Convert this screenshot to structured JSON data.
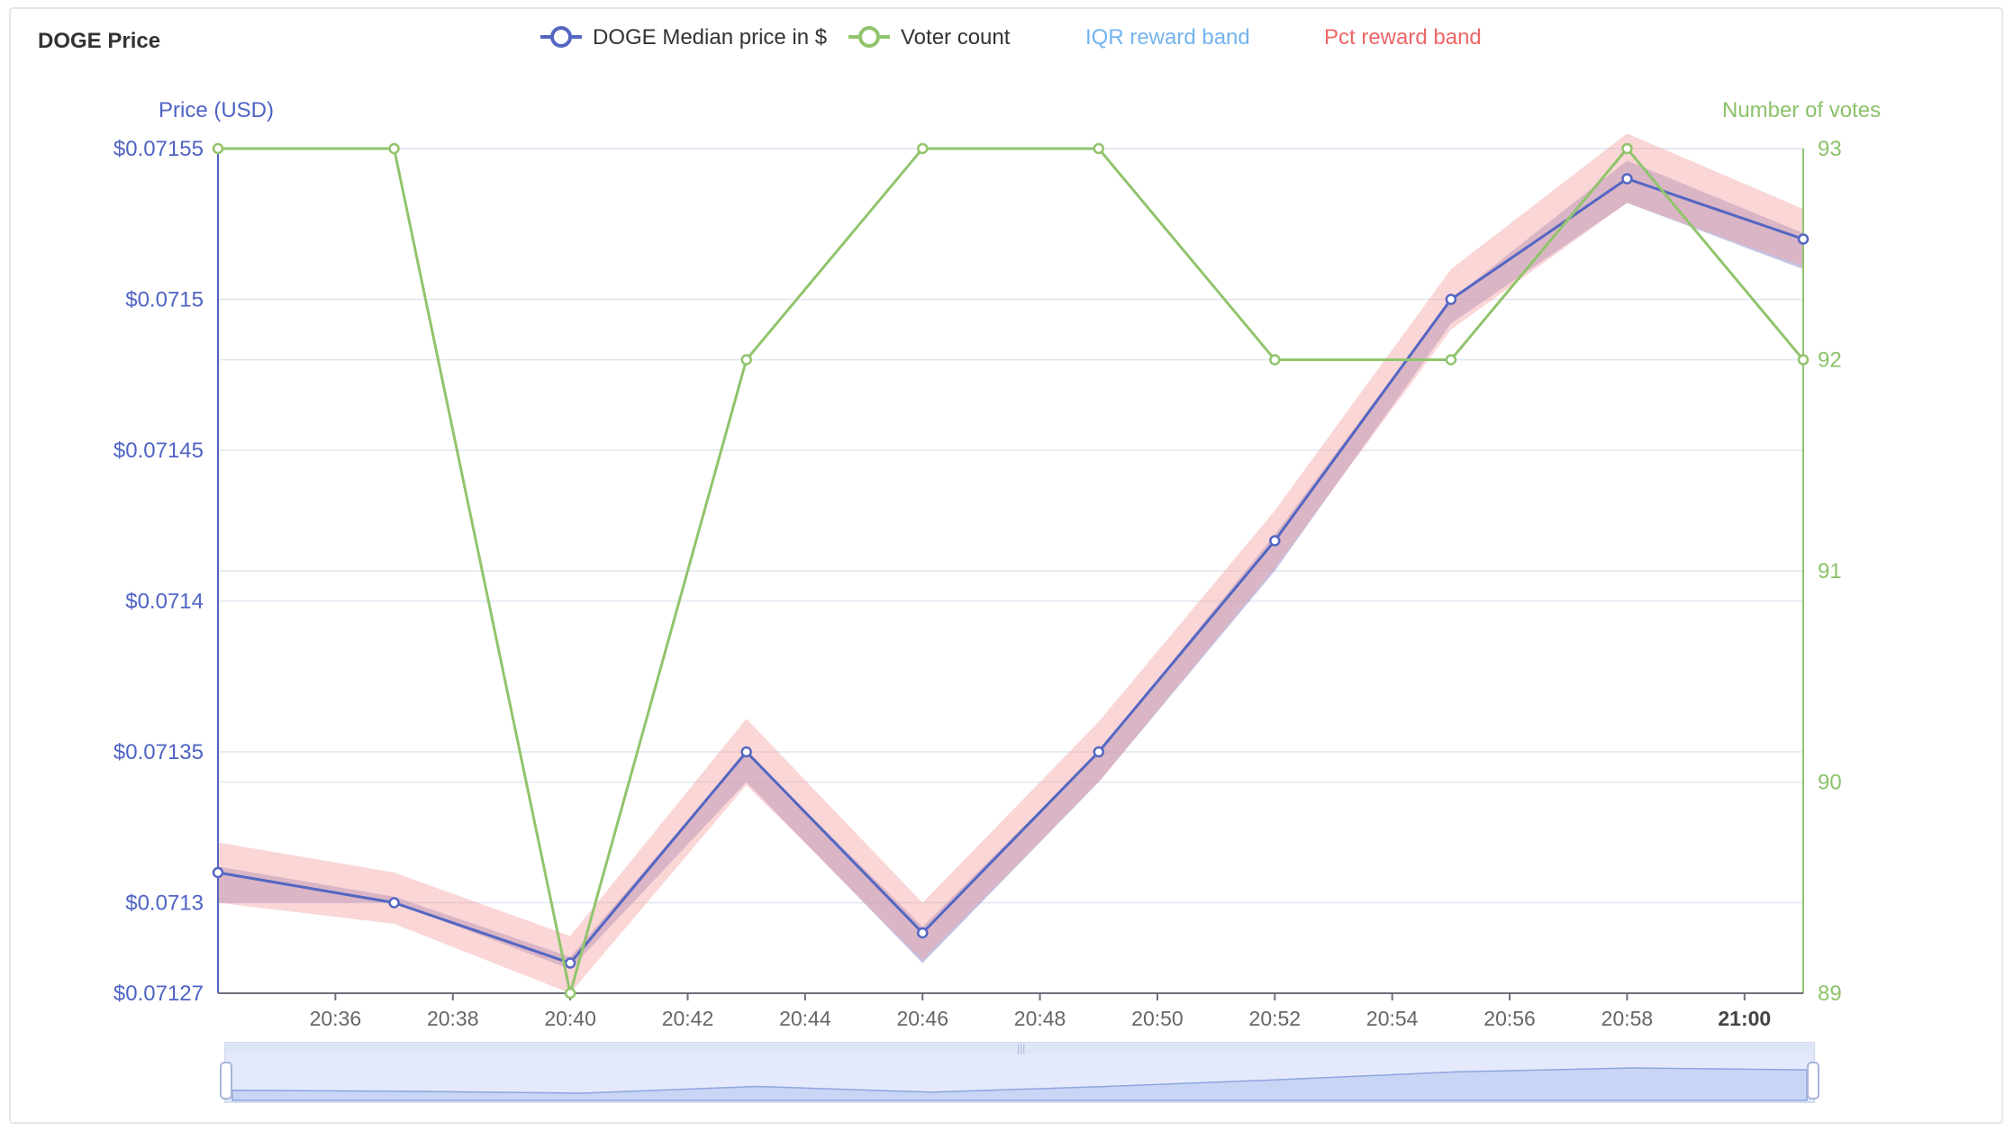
{
  "title": "DOGE Price",
  "legend": {
    "median": {
      "label": "DOGE Median price in $",
      "color": "#5466c2"
    },
    "voters": {
      "label": "Voter count",
      "color": "#91c46c"
    },
    "iqr": {
      "label": "IQR reward band",
      "color": "#73b4f0"
    },
    "pct": {
      "label": "Pct reward band",
      "color": "#ee6666"
    }
  },
  "chart_data": {
    "type": "line",
    "x": [
      "20:34",
      "20:37",
      "20:40",
      "20:43",
      "20:46",
      "20:49",
      "20:52",
      "20:55",
      "20:58",
      "21:01"
    ],
    "x_tick_labels": [
      "20:36",
      "20:38",
      "20:40",
      "20:42",
      "20:44",
      "20:46",
      "20:48",
      "20:50",
      "20:52",
      "20:54",
      "20:56",
      "20:58",
      "21:00"
    ],
    "y_left": {
      "label": "Price (USD)",
      "ylim": [
        0.07127,
        0.07155
      ],
      "tick_labels": [
        "$0.07155",
        "$0.0715",
        "$0.07145",
        "$0.0714",
        "$0.07135",
        "$0.0713",
        "$0.07127"
      ]
    },
    "y_right": {
      "label": "Number of votes",
      "ylim": [
        89,
        93
      ],
      "tick_labels": [
        "93",
        "92",
        "91",
        "90",
        "89"
      ]
    },
    "series": [
      {
        "name": "DOGE Median price in $",
        "axis": "left",
        "values": [
          0.07131,
          0.0713,
          0.07128,
          0.07135,
          0.07129,
          0.07135,
          0.07142,
          0.0715,
          0.07154,
          0.07152
        ]
      },
      {
        "name": "Voter count",
        "axis": "right",
        "values": [
          93,
          93,
          89,
          92,
          93,
          93,
          92,
          92,
          93,
          92
        ]
      },
      {
        "name": "IQR reward band",
        "axis": "left",
        "type": "band",
        "low": [
          0.0713,
          0.0713,
          0.071278,
          0.07134,
          0.07128,
          0.07134,
          0.07141,
          0.071492,
          0.071532,
          0.07151
        ],
        "high": [
          0.071312,
          0.071302,
          0.071282,
          0.07135,
          0.071292,
          0.07135,
          0.071422,
          0.0715,
          0.071546,
          0.071522
        ]
      },
      {
        "name": "Pct reward band",
        "axis": "left",
        "type": "band",
        "low": [
          0.0713,
          0.071293,
          0.07127,
          0.071339,
          0.071281,
          0.07134,
          0.071411,
          0.07149,
          0.071532,
          0.071511
        ],
        "high": [
          0.07132,
          0.07131,
          0.071289,
          0.071361,
          0.0713,
          0.07136,
          0.07143,
          0.07151,
          0.071555,
          0.07153
        ]
      }
    ],
    "grid": true,
    "legend_position": "top-center",
    "data_zoom": true
  }
}
